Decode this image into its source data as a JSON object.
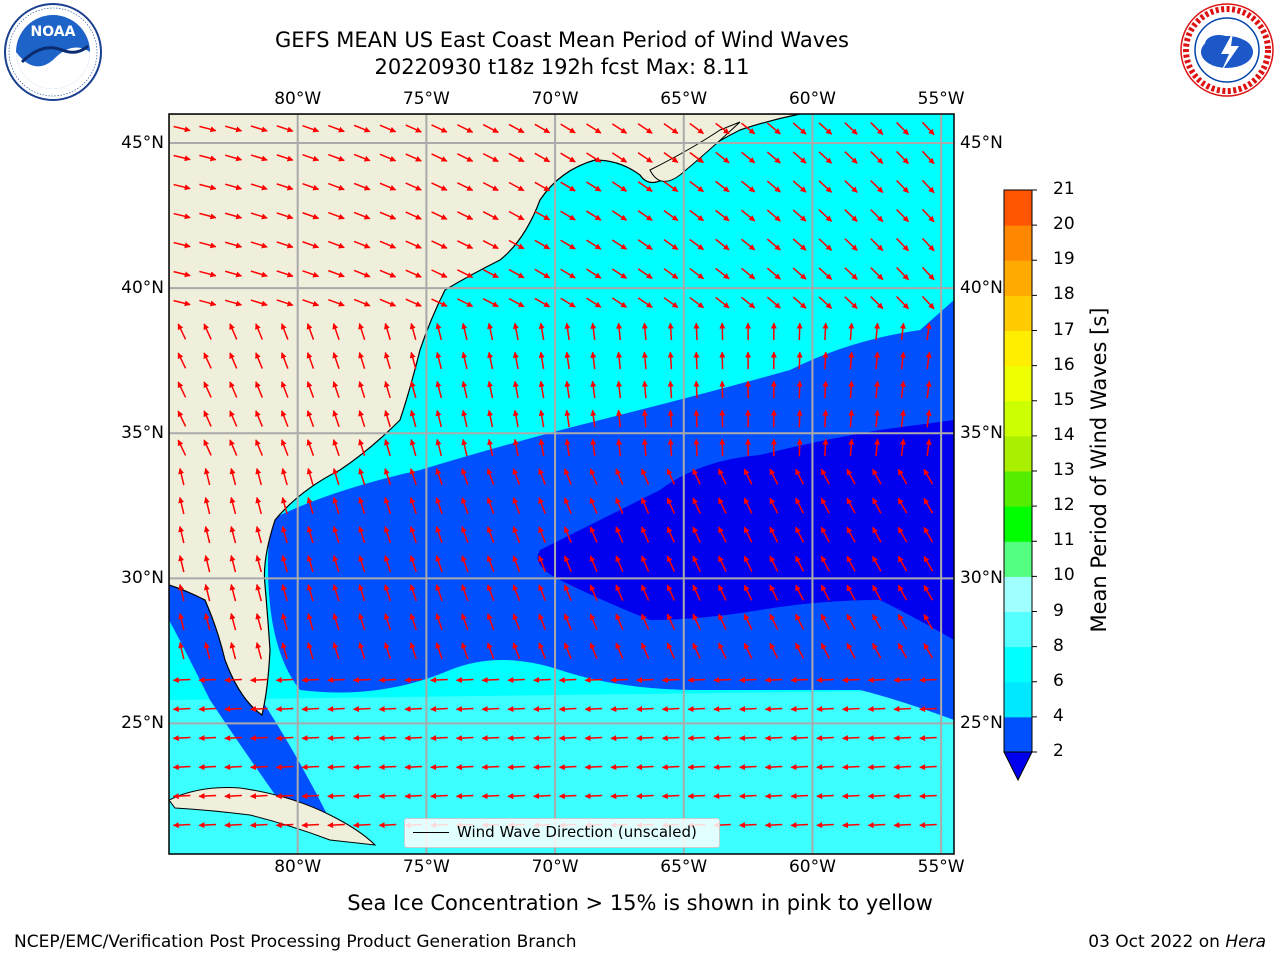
{
  "header": {
    "title_line1": "GEFS MEAN US East Coast Mean Period of Wind Waves",
    "title_line2": "20220930 t18z 192h fcst   Max: 8.11"
  },
  "logos": {
    "left": {
      "name": "NOAA",
      "ring_text": "NATIONAL OCEANIC AND ATMOSPHERIC ADMINISTRATION · U.S. DEPARTMENT OF COMMERCE"
    },
    "right": {
      "ring_text": "NATIONAL WEATHER SERVICE"
    }
  },
  "map": {
    "lon_labels": [
      "80°W",
      "75°W",
      "70°W",
      "65°W",
      "60°W",
      "55°W"
    ],
    "lat_labels": [
      "45°N",
      "40°N",
      "35°N",
      "30°N",
      "25°N"
    ],
    "lon_values": [
      -80,
      -75,
      -70,
      -65,
      -60,
      -55
    ],
    "lat_values": [
      45,
      40,
      35,
      30,
      25
    ],
    "extent": {
      "lon": [
        -85,
        -54.5
      ],
      "lat": [
        20.5,
        46
      ]
    },
    "land_color": "#efefdc",
    "arrow_color": "#ff0000",
    "legend_label": "Wind Wave Direction (unscaled)"
  },
  "colorbar": {
    "title": "Mean Period of Wind Waves [s]",
    "tick_labels": [
      "2",
      "4",
      "6",
      "8",
      "9",
      "10",
      "11",
      "12",
      "13",
      "14",
      "15",
      "16",
      "17",
      "18",
      "19",
      "20",
      "21"
    ],
    "colors": [
      "#0050ff",
      "#00e8ff",
      "#00ffff",
      "#55ffff",
      "#a0ffff",
      "#55ff80",
      "#00ff00",
      "#55ee00",
      "#aaee00",
      "#ccff00",
      "#eeff00",
      "#ffee00",
      "#ffcc00",
      "#ffaa00",
      "#ff8800",
      "#ff5500",
      "#ff2200",
      "#ff0000"
    ],
    "under_color": "#0000ee"
  },
  "note": "Sea Ice Concentration > 15% is shown in pink to yellow",
  "footer": {
    "left": "NCEP/EMC/Verification Post Processing Product Generation Branch",
    "right_date": "03 Oct 2022 on ",
    "right_machine": "Hera"
  }
}
